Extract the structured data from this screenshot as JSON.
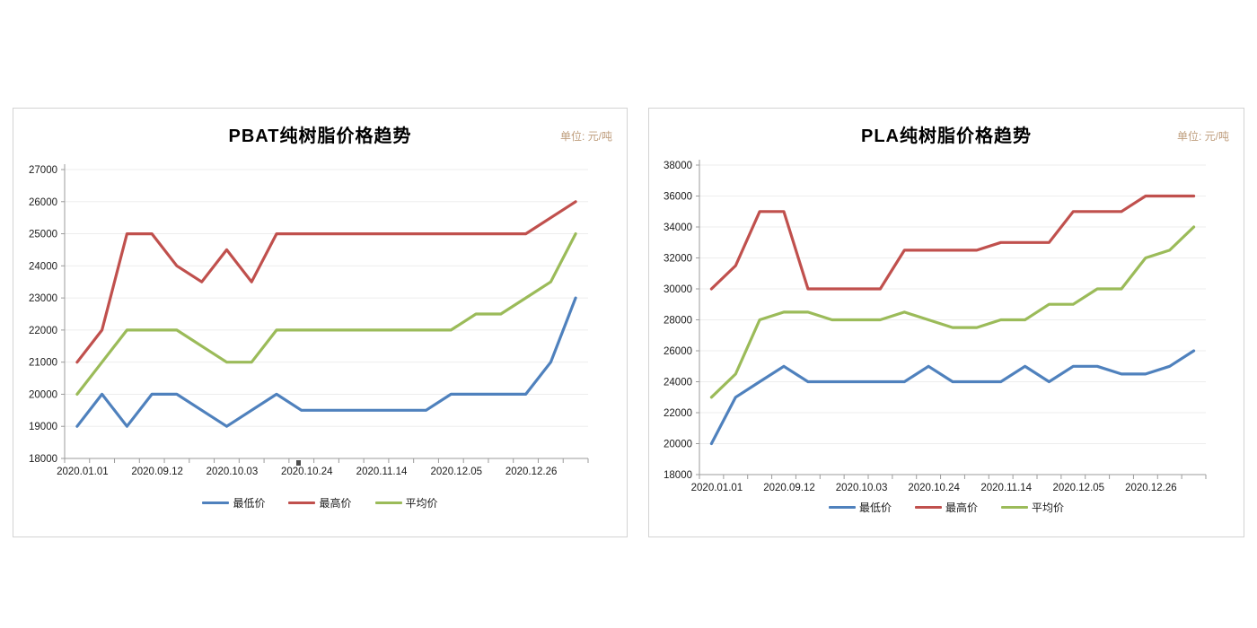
{
  "page": {
    "background": "#ffffff"
  },
  "chart_data": [
    {
      "type": "line",
      "title": "PBAT纯树脂价格趋势",
      "unit_label": "单位: 元/吨",
      "x_labels": [
        "2020.01.01",
        "2020.09.12",
        "2020.10.03",
        "2020.10.24",
        "2020.11.14",
        "2020.12.05",
        "2020.12.26"
      ],
      "x_label_interval": 3,
      "n_points": 21,
      "ylim": [
        18000,
        27000
      ],
      "ytick_step": 1000,
      "grid": true,
      "legend_position": "bottom",
      "series": [
        {
          "name": "最低价",
          "color": "#4F81BD",
          "values": [
            19000,
            20000,
            19000,
            20000,
            20000,
            19500,
            19000,
            19500,
            20000,
            19500,
            19500,
            19500,
            19500,
            19500,
            19500,
            20000,
            20000,
            20000,
            20000,
            21000,
            23000
          ]
        },
        {
          "name": "最高价",
          "color": "#C0504D",
          "values": [
            21000,
            22000,
            25000,
            25000,
            24000,
            23500,
            24500,
            23500,
            25000,
            25000,
            25000,
            25000,
            25000,
            25000,
            25000,
            25000,
            25000,
            25000,
            25000,
            25500,
            26000
          ]
        },
        {
          "name": "平均价",
          "color": "#9BBB59",
          "values": [
            20000,
            21000,
            22000,
            22000,
            22000,
            21500,
            21000,
            21000,
            22000,
            22000,
            22000,
            22000,
            22000,
            22000,
            22000,
            22000,
            22500,
            22500,
            23000,
            23500,
            25000
          ]
        }
      ]
    },
    {
      "type": "line",
      "title": "PLA纯树脂价格趋势",
      "unit_label": "单位: 元/吨",
      "x_labels": [
        "2020.01.01",
        "2020.09.12",
        "2020.10.03",
        "2020.10.24",
        "2020.11.14",
        "2020.12.05",
        "2020.12.26"
      ],
      "x_label_interval": 3,
      "n_points": 21,
      "ylim": [
        18000,
        38000
      ],
      "ytick_step": 2000,
      "grid": true,
      "legend_position": "bottom",
      "series": [
        {
          "name": "最低价",
          "color": "#4F81BD",
          "values": [
            20000,
            23000,
            24000,
            25000,
            24000,
            24000,
            24000,
            24000,
            24000,
            25000,
            24000,
            24000,
            24000,
            25000,
            24000,
            25000,
            25000,
            24500,
            24500,
            25000,
            26000
          ]
        },
        {
          "name": "最高价",
          "color": "#C0504D",
          "values": [
            30000,
            31500,
            35000,
            35000,
            30000,
            30000,
            30000,
            30000,
            32500,
            32500,
            32500,
            32500,
            33000,
            33000,
            33000,
            35000,
            35000,
            35000,
            36000,
            36000,
            36000
          ]
        },
        {
          "name": "平均价",
          "color": "#9BBB59",
          "values": [
            23000,
            24500,
            28000,
            28500,
            28500,
            28000,
            28000,
            28000,
            28500,
            28000,
            27500,
            27500,
            28000,
            28000,
            29000,
            29000,
            30000,
            30000,
            32000,
            32500,
            34000
          ]
        }
      ]
    }
  ],
  "style_colors": {
    "unit_text": "#bf9e7d",
    "axis": "#9b9b9b",
    "gridline": "#ededed",
    "tick_text": "#1a1a1a"
  }
}
